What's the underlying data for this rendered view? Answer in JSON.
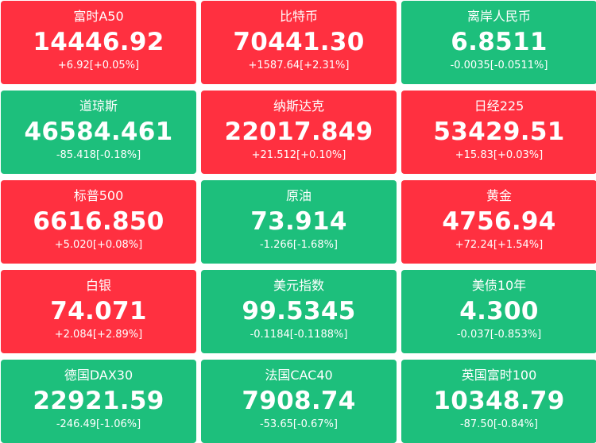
{
  "colors": {
    "up": "#ff3040",
    "down": "#1dbf7c",
    "text": "#ffffff"
  },
  "tiles": [
    {
      "name": "富时A50",
      "price": "14446.92",
      "change": "+6.92[+0.05%]",
      "trend": "up"
    },
    {
      "name": "比特币",
      "price": "70441.30",
      "change": "+1587.64[+2.31%]",
      "trend": "up"
    },
    {
      "name": "离岸人民币",
      "price": "6.8511",
      "change": "-0.0035[-0.0511%]",
      "trend": "down"
    },
    {
      "name": "道琼斯",
      "price": "46584.461",
      "change": "-85.418[-0.18%]",
      "trend": "down"
    },
    {
      "name": "纳斯达克",
      "price": "22017.849",
      "change": "+21.512[+0.10%]",
      "trend": "up"
    },
    {
      "name": "日经225",
      "price": "53429.51",
      "change": "+15.83[+0.03%]",
      "trend": "up"
    },
    {
      "name": "标普500",
      "price": "6616.850",
      "change": "+5.020[+0.08%]",
      "trend": "up"
    },
    {
      "name": "原油",
      "price": "73.914",
      "change": "-1.266[-1.68%]",
      "trend": "down"
    },
    {
      "name": "黄金",
      "price": "4756.94",
      "change": "+72.24[+1.54%]",
      "trend": "up"
    },
    {
      "name": "白银",
      "price": "74.071",
      "change": "+2.084[+2.89%]",
      "trend": "up"
    },
    {
      "name": "美元指数",
      "price": "99.5345",
      "change": "-0.1184[-0.1188%]",
      "trend": "down"
    },
    {
      "name": "美债10年",
      "price": "4.300",
      "change": "-0.037[-0.853%]",
      "trend": "down"
    },
    {
      "name": "德国DAX30",
      "price": "22921.59",
      "change": "-246.49[-1.06%]",
      "trend": "down"
    },
    {
      "name": "法国CAC40",
      "price": "7908.74",
      "change": "-53.65[-0.67%]",
      "trend": "down"
    },
    {
      "name": "英国富时100",
      "price": "10348.79",
      "change": "-87.50[-0.84%]",
      "trend": "down"
    }
  ]
}
